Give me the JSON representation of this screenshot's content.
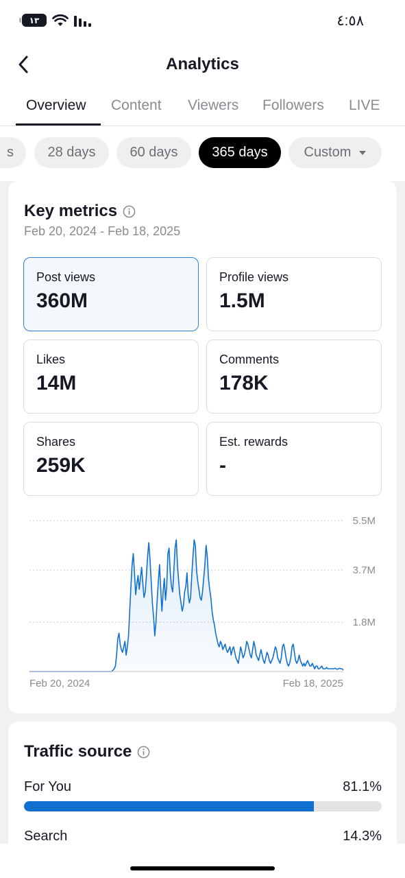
{
  "status": {
    "battery": "١٣",
    "time": "٤:٥٨"
  },
  "nav": {
    "title": "Analytics"
  },
  "tabs": [
    "Overview",
    "Content",
    "Viewers",
    "Followers",
    "LIVE"
  ],
  "filters": [
    "s",
    "28 days",
    "60 days",
    "365 days",
    "Custom"
  ],
  "key_metrics": {
    "title": "Key metrics",
    "date_range": "Feb 20, 2024 - Feb 18, 2025",
    "metrics": [
      {
        "label": "Post views",
        "value": "360M"
      },
      {
        "label": "Profile views",
        "value": "1.5M"
      },
      {
        "label": "Likes",
        "value": "14M"
      },
      {
        "label": "Comments",
        "value": "178K"
      },
      {
        "label": "Shares",
        "value": "259K"
      },
      {
        "label": "Est. rewards",
        "value": "-"
      }
    ]
  },
  "chart_data": {
    "type": "area",
    "x_start_label": "Feb 20, 2024",
    "x_end_label": "Feb 18, 2025",
    "y_tick_labels": [
      "5.5M",
      "3.7M",
      "1.8M"
    ],
    "y_tick_values": [
      5500000,
      3700000,
      1800000
    ],
    "ylim": [
      0,
      5500000
    ],
    "grid": true,
    "series_color": "#1170cf",
    "values_millions": [
      0,
      0,
      0,
      0,
      0,
      0,
      0,
      0,
      0,
      0,
      0,
      0,
      0,
      0,
      0,
      0,
      0,
      0,
      0,
      0,
      0,
      0,
      0,
      0,
      0,
      0,
      0,
      0,
      0,
      0,
      0,
      0,
      0,
      0,
      0,
      0,
      0,
      0,
      0,
      0,
      0,
      0,
      0,
      0,
      0,
      0,
      0,
      0,
      0,
      0,
      0,
      0,
      0,
      0,
      0,
      0,
      0,
      0,
      0,
      0,
      0,
      0,
      0,
      0,
      0,
      0,
      0,
      0,
      0,
      0,
      0.05,
      0.1,
      0.2,
      0.6,
      1.2,
      1.4,
      1.0,
      0.8,
      0.7,
      0.9,
      1.1,
      0.6,
      0.9,
      1.3,
      2.2,
      3.1,
      3.9,
      4.3,
      3.6,
      2.8,
      3.2,
      3.5,
      3.0,
      3.4,
      3.8,
      3.2,
      2.7,
      2.9,
      3.5,
      4.2,
      4.7,
      4.1,
      3.3,
      2.5,
      2.0,
      1.3,
      1.8,
      2.6,
      3.3,
      3.9,
      3.0,
      2.2,
      2.9,
      3.4,
      2.6,
      3.1,
      4.3,
      4.5,
      3.6,
      3.1,
      2.9,
      3.7,
      4.5,
      4.8,
      3.9,
      3.3,
      2.8,
      2.5,
      2.2,
      2.4,
      2.9,
      3.1,
      3.6,
      2.8,
      2.5,
      2.7,
      3.5,
      4.2,
      4.8,
      4.6,
      3.7,
      3.3,
      3.0,
      2.7,
      2.6,
      2.9,
      3.4,
      3.9,
      4.6,
      4.2,
      3.4,
      3.0,
      2.7,
      2.2,
      1.9,
      1.7,
      1.4,
      1.2,
      1.0,
      0.9,
      1.1,
      1.0,
      0.8,
      0.9,
      1.0,
      0.8,
      0.7,
      0.8,
      0.9,
      0.6,
      0.8,
      0.9,
      0.7,
      0.5,
      0.4,
      0.3,
      0.6,
      0.9,
      0.7,
      0.5,
      0.6,
      0.8,
      1.1,
      1.0,
      0.8,
      0.6,
      0.5,
      0.8,
      1.1,
      0.9,
      0.6,
      0.5,
      0.4,
      0.6,
      0.8,
      0.6,
      0.4,
      0.3,
      0.5,
      0.7,
      0.6,
      0.4,
      0.3,
      0.4,
      0.5,
      0.7,
      0.9,
      0.8,
      0.5,
      0.4,
      0.3,
      0.5,
      0.9,
      1.0,
      0.8,
      0.5,
      0.3,
      0.2,
      0.3,
      0.5,
      0.9,
      1.0,
      0.7,
      0.4,
      0.3,
      0.4,
      0.6,
      0.4,
      0.3,
      0.2,
      0.3,
      0.2,
      0.3,
      0.4,
      0.3,
      0.2,
      0.2,
      0.3,
      0.2,
      0.1,
      0.2,
      0.2,
      0.1,
      0.1,
      0.15,
      0.2,
      0.1,
      0.1,
      0.1,
      0.15,
      0.1,
      0.1,
      0.1,
      0.1,
      0.1,
      0.1,
      0.12,
      0.1,
      0.08,
      0.1,
      0.12,
      0.1,
      0.1,
      0.05
    ]
  },
  "traffic": {
    "title": "Traffic source",
    "rows": [
      {
        "label": "For You",
        "value": "81.1%",
        "fraction": 0.811
      },
      {
        "label": "Search",
        "value": "14.3%",
        "fraction": 0.143
      }
    ]
  }
}
